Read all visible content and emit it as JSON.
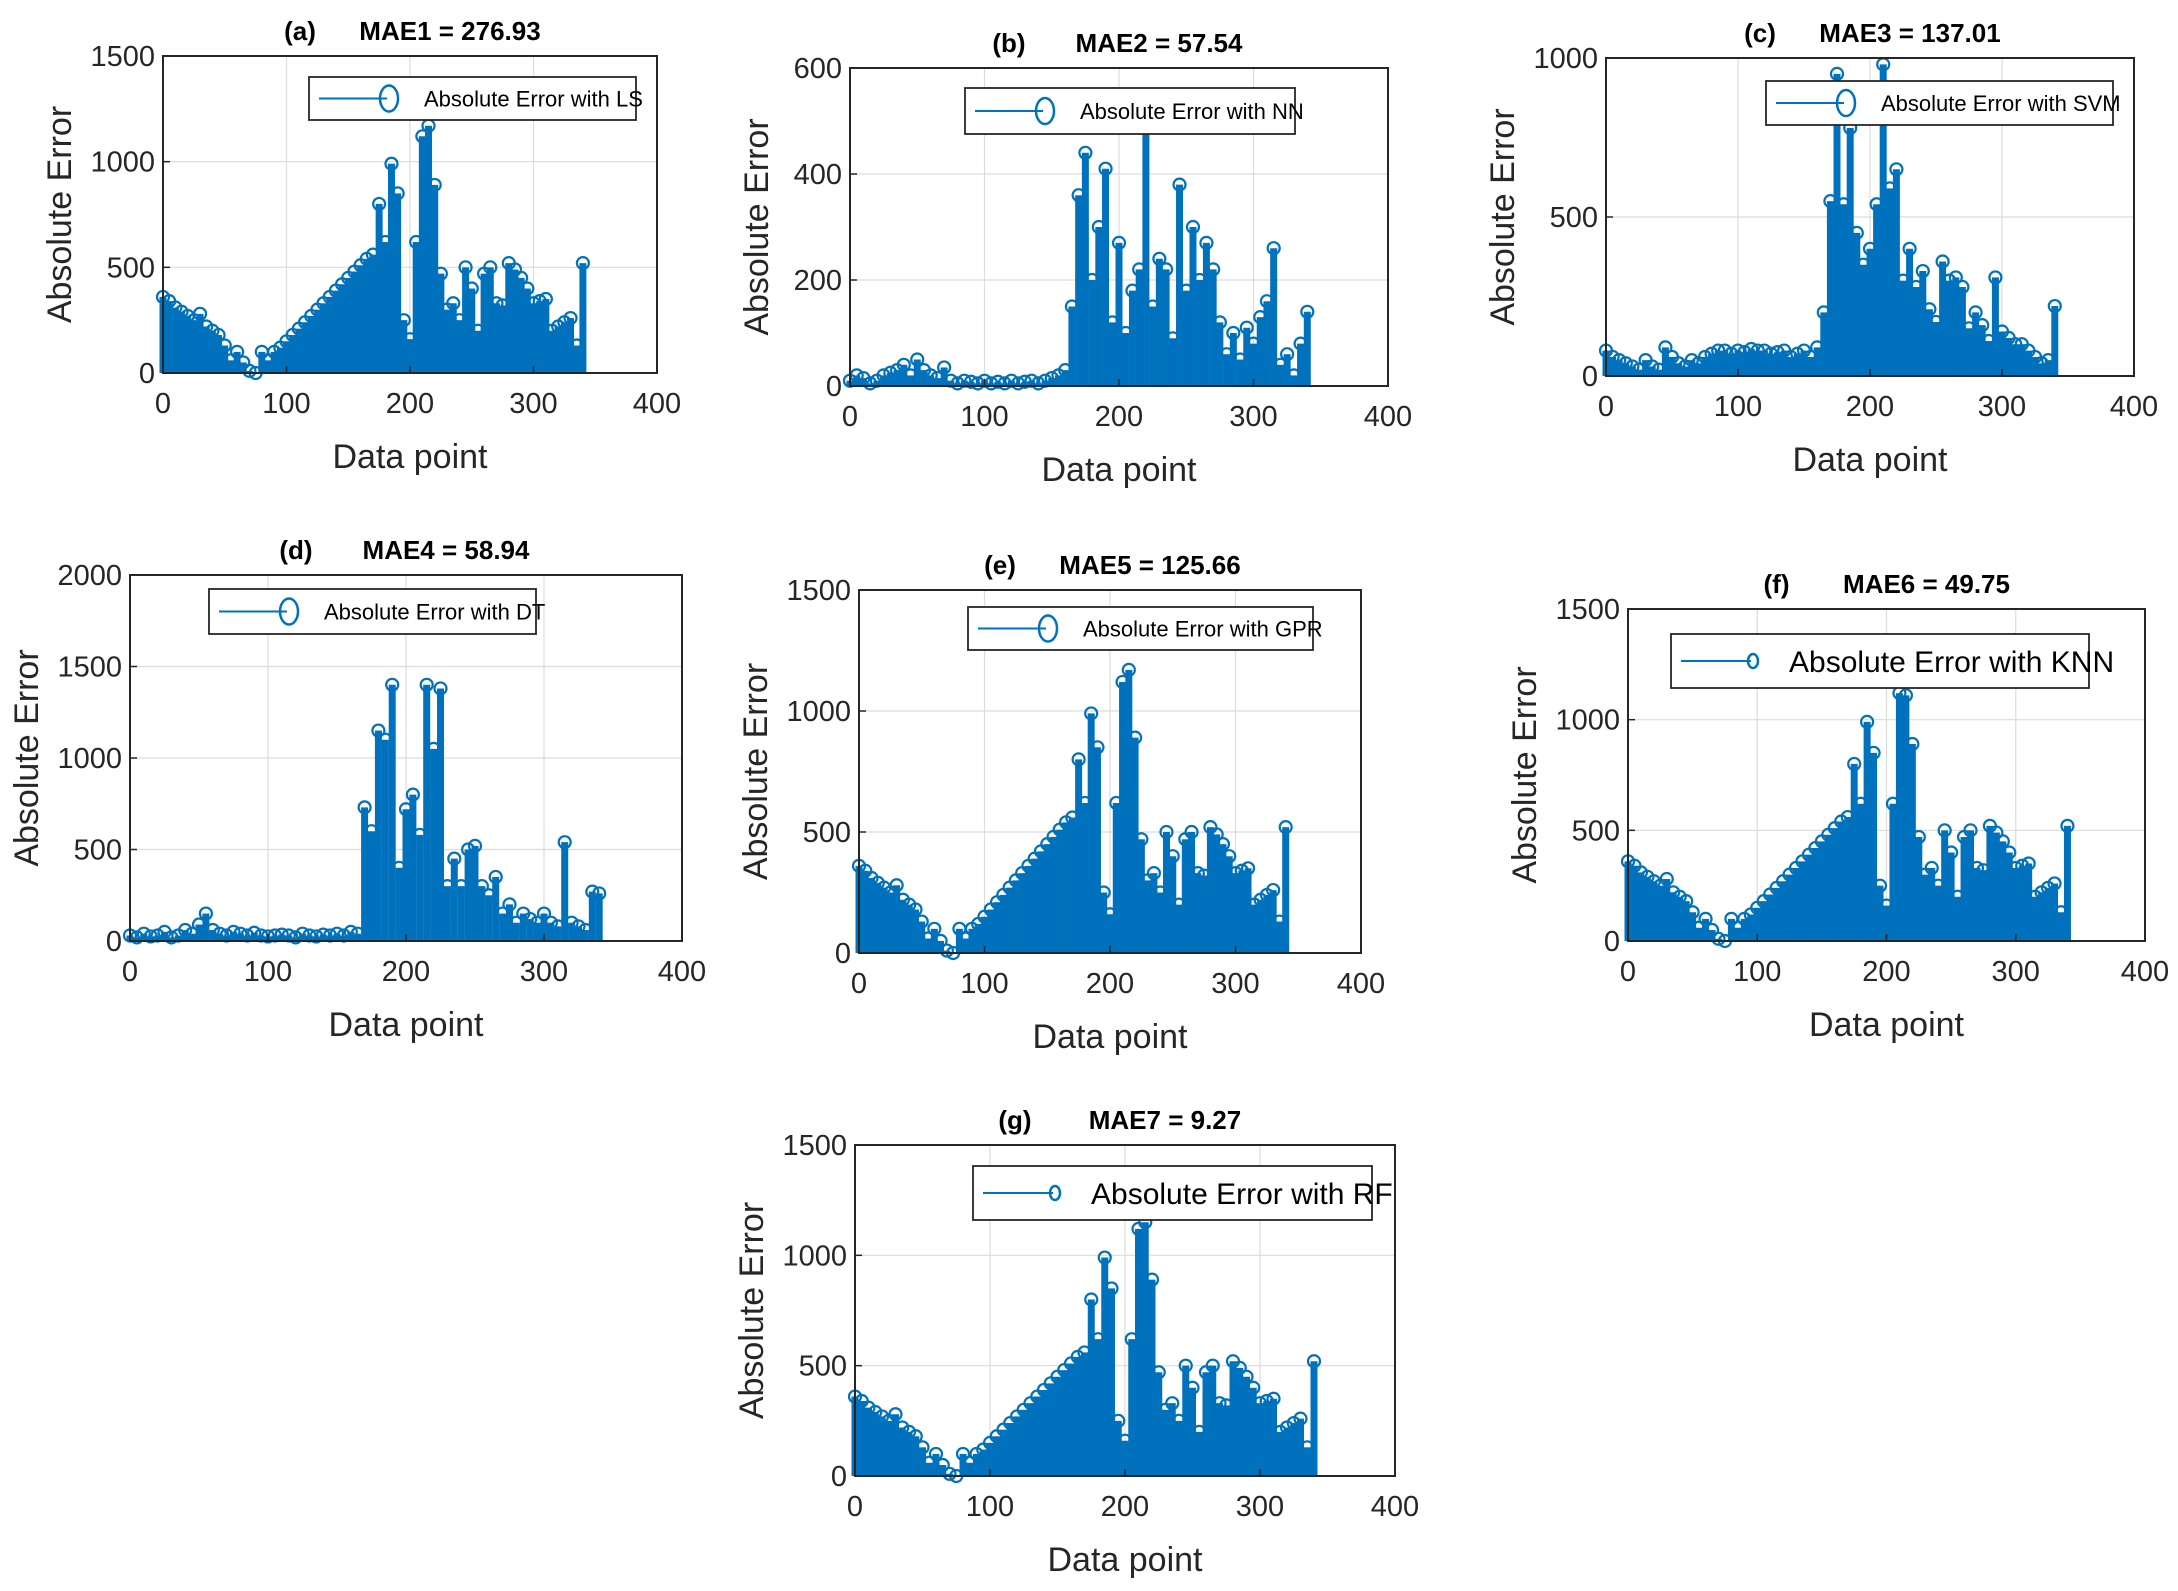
{
  "chart_data": [
    {
      "type": "stem",
      "panel": "(a)",
      "title": "MAE1 = 276.93",
      "legend": "Absolute Error with LS",
      "xlabel": "Data point",
      "ylabel": "Absolute Error",
      "xlim": [
        0,
        400
      ],
      "ylim": [
        0,
        1500
      ],
      "xticks": [
        0,
        100,
        200,
        300,
        400
      ],
      "yticks": [
        0,
        500,
        1000,
        1500
      ],
      "grid": true,
      "legend_position": "top-right",
      "color": "#0072BD",
      "x": [
        0,
        5,
        10,
        15,
        20,
        25,
        30,
        35,
        40,
        45,
        50,
        55,
        60,
        65,
        70,
        75,
        80,
        85,
        90,
        95,
        100,
        105,
        110,
        115,
        120,
        125,
        130,
        135,
        140,
        145,
        150,
        155,
        160,
        165,
        170,
        175,
        180,
        185,
        190,
        195,
        200,
        205,
        210,
        215,
        220,
        225,
        230,
        235,
        240,
        245,
        250,
        255,
        260,
        265,
        270,
        275,
        280,
        285,
        290,
        295,
        300,
        305,
        310,
        315,
        320,
        325,
        330,
        335,
        340
      ],
      "values": [
        360,
        340,
        310,
        290,
        270,
        250,
        280,
        220,
        200,
        180,
        130,
        60,
        100,
        50,
        10,
        0,
        100,
        60,
        100,
        120,
        150,
        180,
        210,
        240,
        270,
        300,
        330,
        360,
        390,
        420,
        450,
        480,
        510,
        540,
        560,
        800,
        620,
        990,
        850,
        250,
        160,
        620,
        1120,
        1170,
        890,
        470,
        300,
        330,
        250,
        500,
        400,
        200,
        470,
        500,
        330,
        320,
        520,
        490,
        450,
        400,
        330,
        340,
        350,
        200,
        220,
        240,
        260,
        130,
        520
      ]
    },
    {
      "type": "stem",
      "panel": "(b)",
      "title": "MAE2 = 57.54",
      "legend": "Absolute Error with NN",
      "xlabel": "Data point",
      "ylabel": "Absolute Error",
      "xlim": [
        0,
        400
      ],
      "ylim": [
        0,
        600
      ],
      "xticks": [
        0,
        100,
        200,
        300,
        400
      ],
      "yticks": [
        0,
        200,
        400,
        600
      ],
      "grid": true,
      "legend_position": "top-right",
      "color": "#0072BD",
      "x": [
        0,
        5,
        10,
        15,
        20,
        25,
        30,
        35,
        40,
        45,
        50,
        55,
        60,
        65,
        70,
        75,
        80,
        85,
        90,
        95,
        100,
        105,
        110,
        115,
        120,
        125,
        130,
        135,
        140,
        145,
        150,
        155,
        160,
        165,
        170,
        175,
        180,
        185,
        190,
        195,
        200,
        205,
        210,
        215,
        220,
        225,
        230,
        235,
        240,
        245,
        250,
        255,
        260,
        265,
        270,
        275,
        280,
        285,
        290,
        295,
        300,
        305,
        310,
        315,
        320,
        325,
        330,
        335,
        340
      ],
      "values": [
        10,
        20,
        15,
        5,
        10,
        20,
        25,
        30,
        40,
        20,
        50,
        30,
        20,
        15,
        35,
        10,
        5,
        10,
        8,
        5,
        10,
        5,
        8,
        5,
        10,
        5,
        8,
        10,
        5,
        10,
        15,
        20,
        30,
        150,
        360,
        440,
        200,
        300,
        410,
        120,
        270,
        100,
        180,
        220,
        490,
        150,
        240,
        220,
        90,
        380,
        180,
        300,
        200,
        270,
        220,
        120,
        60,
        100,
        50,
        110,
        80,
        130,
        160,
        260,
        40,
        60,
        20,
        80,
        140
      ]
    },
    {
      "type": "stem",
      "panel": "(c)",
      "title": "MAE3 = 137.01",
      "legend": "Absolute Error with SVM",
      "xlabel": "Data point",
      "ylabel": "Absolute Error",
      "xlim": [
        0,
        400
      ],
      "ylim": [
        0,
        1000
      ],
      "xticks": [
        0,
        100,
        200,
        300,
        400
      ],
      "yticks": [
        0,
        500,
        1000
      ],
      "grid": true,
      "legend_position": "top-right",
      "color": "#0072BD",
      "x": [
        0,
        5,
        10,
        15,
        20,
        25,
        30,
        35,
        40,
        45,
        50,
        55,
        60,
        65,
        70,
        75,
        80,
        85,
        90,
        95,
        100,
        105,
        110,
        115,
        120,
        125,
        130,
        135,
        140,
        145,
        150,
        155,
        160,
        165,
        170,
        175,
        180,
        185,
        190,
        195,
        200,
        205,
        210,
        215,
        220,
        225,
        230,
        235,
        240,
        245,
        250,
        255,
        260,
        265,
        270,
        275,
        280,
        285,
        290,
        295,
        300,
        305,
        310,
        315,
        320,
        325,
        330,
        335,
        340
      ],
      "values": [
        80,
        60,
        50,
        40,
        30,
        20,
        50,
        30,
        20,
        90,
        60,
        40,
        30,
        50,
        40,
        60,
        70,
        80,
        80,
        70,
        80,
        75,
        85,
        80,
        80,
        70,
        75,
        80,
        60,
        70,
        80,
        60,
        90,
        200,
        550,
        950,
        540,
        780,
        450,
        350,
        400,
        540,
        980,
        590,
        650,
        300,
        400,
        280,
        330,
        210,
        170,
        360,
        300,
        310,
        280,
        150,
        200,
        160,
        110,
        310,
        140,
        120,
        100,
        100,
        80,
        60,
        40,
        50,
        220
      ]
    },
    {
      "type": "stem",
      "panel": "(d)",
      "title": "MAE4 = 58.94",
      "legend": "Absolute Error with DT",
      "xlabel": "Data point",
      "ylabel": "Absolute Error",
      "xlim": [
        0,
        400
      ],
      "ylim": [
        0,
        2000
      ],
      "xticks": [
        0,
        100,
        200,
        300,
        400
      ],
      "yticks": [
        0,
        500,
        1000,
        1500,
        2000
      ],
      "grid": true,
      "legend_position": "top-right",
      "color": "#0072BD",
      "x": [
        0,
        5,
        10,
        15,
        20,
        25,
        30,
        35,
        40,
        45,
        50,
        55,
        60,
        65,
        70,
        75,
        80,
        85,
        90,
        95,
        100,
        105,
        110,
        115,
        120,
        125,
        130,
        135,
        140,
        145,
        150,
        155,
        160,
        165,
        170,
        175,
        180,
        185,
        190,
        195,
        200,
        205,
        210,
        215,
        220,
        225,
        230,
        235,
        240,
        245,
        250,
        255,
        260,
        265,
        270,
        275,
        280,
        285,
        290,
        295,
        300,
        305,
        310,
        315,
        320,
        325,
        330,
        335,
        340
      ],
      "values": [
        30,
        20,
        40,
        25,
        30,
        50,
        20,
        30,
        60,
        40,
        90,
        150,
        60,
        40,
        30,
        50,
        40,
        30,
        45,
        30,
        25,
        30,
        35,
        30,
        20,
        40,
        30,
        25,
        35,
        30,
        40,
        30,
        50,
        40,
        730,
        600,
        1150,
        1100,
        1400,
        400,
        720,
        800,
        580,
        1400,
        1050,
        1380,
        300,
        450,
        300,
        500,
        520,
        300,
        250,
        350,
        150,
        200,
        100,
        150,
        120,
        100,
        150,
        100,
        80,
        540,
        100,
        80,
        60,
        270,
        260
      ]
    },
    {
      "type": "stem",
      "panel": "(e)",
      "title": "MAE5 = 125.66",
      "legend": "Absolute Error with GPR",
      "xlabel": "Data point",
      "ylabel": "Absolute Error",
      "xlim": [
        0,
        400
      ],
      "ylim": [
        0,
        1500
      ],
      "xticks": [
        0,
        100,
        200,
        300,
        400
      ],
      "yticks": [
        0,
        500,
        1000,
        1500
      ],
      "grid": true,
      "legend_position": "top-right",
      "color": "#0072BD",
      "x": [
        0,
        5,
        10,
        15,
        20,
        25,
        30,
        35,
        40,
        45,
        50,
        55,
        60,
        65,
        70,
        75,
        80,
        85,
        90,
        95,
        100,
        105,
        110,
        115,
        120,
        125,
        130,
        135,
        140,
        145,
        150,
        155,
        160,
        165,
        170,
        175,
        180,
        185,
        190,
        195,
        200,
        205,
        210,
        215,
        220,
        225,
        230,
        235,
        240,
        245,
        250,
        255,
        260,
        265,
        270,
        275,
        280,
        285,
        290,
        295,
        300,
        305,
        310,
        315,
        320,
        325,
        330,
        335,
        340
      ],
      "values": [
        360,
        340,
        310,
        290,
        270,
        250,
        280,
        220,
        200,
        180,
        130,
        60,
        100,
        50,
        10,
        0,
        100,
        60,
        100,
        120,
        150,
        180,
        210,
        240,
        270,
        300,
        330,
        360,
        390,
        420,
        450,
        480,
        510,
        540,
        560,
        800,
        620,
        990,
        850,
        250,
        160,
        620,
        1120,
        1170,
        890,
        470,
        300,
        330,
        250,
        500,
        400,
        200,
        470,
        500,
        330,
        320,
        520,
        490,
        450,
        400,
        330,
        340,
        350,
        200,
        220,
        240,
        260,
        130,
        520
      ]
    },
    {
      "type": "stem",
      "panel": "(f)",
      "title": "MAE6 = 49.75",
      "legend": "Absolute Error with KNN",
      "xlabel": "Data point",
      "ylabel": "Absolute Error",
      "xlim": [
        0,
        400
      ],
      "ylim": [
        0,
        1500
      ],
      "xticks": [
        0,
        100,
        200,
        300,
        400
      ],
      "yticks": [
        0,
        500,
        1000,
        1500
      ],
      "grid": true,
      "legend_position": "top-right",
      "color": "#0072BD",
      "x": [
        0,
        5,
        10,
        15,
        20,
        25,
        30,
        35,
        40,
        45,
        50,
        55,
        60,
        65,
        70,
        75,
        80,
        85,
        90,
        95,
        100,
        105,
        110,
        115,
        120,
        125,
        130,
        135,
        140,
        145,
        150,
        155,
        160,
        165,
        170,
        175,
        180,
        185,
        190,
        195,
        200,
        205,
        210,
        215,
        220,
        225,
        230,
        235,
        240,
        245,
        250,
        255,
        260,
        265,
        270,
        275,
        280,
        285,
        290,
        295,
        300,
        305,
        310,
        315,
        320,
        325,
        330,
        335,
        340
      ],
      "values": [
        360,
        340,
        310,
        290,
        270,
        250,
        280,
        220,
        200,
        180,
        130,
        60,
        100,
        50,
        10,
        0,
        100,
        60,
        100,
        120,
        150,
        180,
        210,
        240,
        270,
        300,
        330,
        360,
        390,
        420,
        450,
        480,
        510,
        540,
        560,
        800,
        620,
        990,
        850,
        250,
        160,
        620,
        1120,
        1110,
        890,
        470,
        300,
        330,
        250,
        500,
        400,
        200,
        470,
        500,
        330,
        320,
        520,
        490,
        450,
        400,
        330,
        340,
        350,
        200,
        220,
        240,
        260,
        130,
        520
      ]
    },
    {
      "type": "stem",
      "panel": "(g)",
      "title": "MAE7 = 9.27",
      "legend": "Absolute Error with RF",
      "xlabel": "Data point",
      "ylabel": "Absolute Error",
      "xlim": [
        0,
        400
      ],
      "ylim": [
        0,
        1500
      ],
      "xticks": [
        0,
        100,
        200,
        300,
        400
      ],
      "yticks": [
        0,
        500,
        1000,
        1500
      ],
      "grid": true,
      "legend_position": "top-right",
      "color": "#0072BD",
      "x": [
        0,
        5,
        10,
        15,
        20,
        25,
        30,
        35,
        40,
        45,
        50,
        55,
        60,
        65,
        70,
        75,
        80,
        85,
        90,
        95,
        100,
        105,
        110,
        115,
        120,
        125,
        130,
        135,
        140,
        145,
        150,
        155,
        160,
        165,
        170,
        175,
        180,
        185,
        190,
        195,
        200,
        205,
        210,
        215,
        220,
        225,
        230,
        235,
        240,
        245,
        250,
        255,
        260,
        265,
        270,
        275,
        280,
        285,
        290,
        295,
        300,
        305,
        310,
        315,
        320,
        325,
        330,
        335,
        340
      ],
      "values": [
        360,
        340,
        310,
        290,
        270,
        250,
        280,
        220,
        200,
        180,
        130,
        60,
        100,
        50,
        10,
        0,
        100,
        60,
        100,
        120,
        150,
        180,
        210,
        240,
        270,
        300,
        330,
        360,
        390,
        420,
        450,
        480,
        510,
        540,
        560,
        800,
        620,
        990,
        850,
        250,
        160,
        620,
        1120,
        1150,
        890,
        470,
        300,
        330,
        250,
        500,
        400,
        200,
        470,
        500,
        330,
        320,
        520,
        490,
        450,
        400,
        330,
        340,
        350,
        200,
        220,
        240,
        260,
        130,
        520
      ]
    }
  ]
}
